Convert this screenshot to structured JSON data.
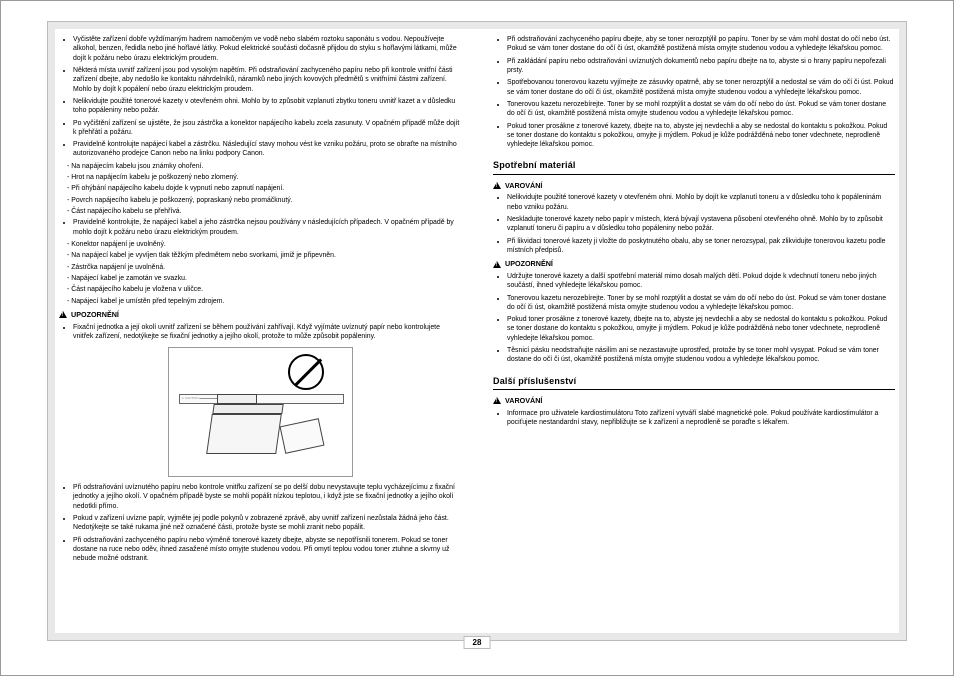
{
  "pageNumber": "28",
  "background_color": "#e8e8e8",
  "border_color": "#bbbbbb",
  "text_color": "#000000",
  "leftColumn": {
    "bullets1": [
      "Vyčistěte zařízení dobře vyždímaným hadrem namočeným ve vodě nebo slabém roztoku saponátu s vodou. Nepoužívejte alkohol, benzen, ředidla nebo jiné hořlavé látky. Pokud elektrické součásti dočasně přijdou do styku s hořlavými látkami, může dojít k požáru nebo úrazu elektrickým proudem.",
      "Některá místa uvnitř zařízení jsou pod vysokým napětím. Při odstraňování zachyceného papíru nebo při kontrole vnitřní části zařízení dbejte, aby nedošlo ke kontaktu náhrdelníků, náramků nebo jiných kovových předmětů s vnitřními částmi zařízení. Mohlo by dojít k popálení nebo úrazu elektrickým proudem.",
      "Nelikvidujte použité tonerové kazety v otevřeném ohni. Mohlo by to způsobit vzplanutí zbytku toneru uvnitř kazet a v důsledku toho popáleniny nebo požár.",
      "Po vyčištění zařízení se ujistěte, že jsou zástrčka a konektor napájecího kabelu zcela zasunuty. V opačném případě může dojít k přehřátí a požáru.",
      "Pravidelně kontrolujte napájecí kabel a zástrčku. Následující stavy mohou vést ke vzniku požáru, proto se obraťte na místního autorizovaného prodejce Canon nebo na linku podpory Canon."
    ],
    "sub1": [
      "Na napájecím kabelu jsou známky ohoření.",
      "Hrot na napájecím kabelu je poškozený nebo zlomený.",
      "Při ohýbání napájecího kabelu dojde k vypnutí nebo zapnutí napájení.",
      "Povrch napájecího kabelu je poškozený, popraskaný nebo promáčknutý.",
      "Část napájecího kabelu se přehřívá."
    ],
    "bullets1b": [
      "Pravidelně kontrolujte, že napájecí kabel a jeho zástrčka nejsou používány v následujících případech. V opačném případě by mohlo dojít k požáru nebo úrazu elektrickým proudem."
    ],
    "sub2": [
      "Konektor napájení je uvolněný.",
      "Na napájecí kabel je vyvíjen tlak těžkým předmětem nebo svorkami, jimiž je připevněn.",
      "Zástrčka napájení je uvolněná.",
      "Napájecí kabel je zamotán ve svazku.",
      "Část napájecího kabelu je vložena v uličce.",
      "Napájecí kabel je umístěn před tepelným zdrojem."
    ],
    "upozorneniHead": "UPOZORNĚNÍ",
    "upozorneniBullets": [
      "Fixační jednotka a její okolí uvnitř zařízení se během používání zahřívají. Když vyjímáte uvíznutý papír nebo kontrolujete vnitřek zařízení, nedotýkejte se fixační jednotky a jejího okolí, protože to může způsobit popáleniny."
    ],
    "bullets2": [
      "Při odstraňování uvíznutého papíru nebo kontrole vnitřku zařízení se po delší dobu nevystavujte teplu vycházejícímu z fixační jednotky a jejího okolí. V opačném případě byste se mohli popálit nízkou teplotou, i když jste se fixační jednotky a jejího okolí nedotkli přímo.",
      "Pokud v zařízení uvízne papír, vyjměte jej podle pokynů v zobrazené zprávě, aby uvnitř zařízení nezůstala žádná jeho část. Nedotýkejte se také rukama jiné než označené části, protože byste se mohli zranit nebo popálit.",
      "Při odstraňování zachyceného papíru nebo výměně tonerové kazety dbejte, abyste se nepotřísnili tonerem. Pokud se toner dostane na ruce nebo oděv, ihned zasažené místo omyjte studenou vodou. Při omytí teplou vodou toner ztuhne a skvrny už nebude možné odstranit."
    ],
    "figure_label": "⚠ CAUTION ▬▬▬▬▬▬▬▬▬▬▬▬▬▬▬▬▬"
  },
  "rightColumn": {
    "bullets1": [
      "Při odstraňování zachyceného papíru dbejte, aby se toner nerozptýlil po papíru. Toner by se vám mohl dostat do očí nebo úst. Pokud se vám toner dostane do očí či úst, okamžitě postižená místa omyjte studenou vodou a vyhledejte lékařskou pomoc.",
      "Při zakládání papíru nebo odstraňování uvíznutých dokumentů nebo papíru dbejte na to, abyste si o hrany papíru nepořezali prsty.",
      "Spotřebovanou tonerovou kazetu vyjímejte ze zásuvky opatrně, aby se toner nerozptýlil a nedostal se vám do očí či úst. Pokud se vám toner dostane do očí či úst, okamžitě postižená místa omyjte studenou vodou a vyhledejte lékařskou pomoc.",
      "Tonerovou kazetu nerozebírejte. Toner by se mohl rozptýlit a dostat se vám do očí nebo do úst. Pokud se vám toner dostane do očí či úst, okamžitě postižená místa omyjte studenou vodou a vyhledejte lékařskou pomoc.",
      "Pokud toner prosákne z tonerové kazety, dbejte na to, abyste jej nevdechli a aby se nedostal do kontaktu s pokožkou. Pokud se toner dostane do kontaktu s pokožkou, omyjte ji mýdlem. Pokud je kůže podrážděná nebo toner vdechnete, neprodleně vyhledejte lékařskou pomoc."
    ],
    "section1": "Spotřební materiál",
    "varovaniHead1": "VAROVÁNÍ",
    "varovaniBullets1": [
      "Nelikvidujte použité tonerové kazety v otevřeném ohni. Mohlo by dojít ke vzplanutí toneru a v důsledku toho k popáleninám nebo vzniku požáru.",
      "Neskladujte tonerové kazety nebo papír v místech, která bývají vystavena působení otevřeného ohně. Mohlo by to způsobit vzplanutí toneru či papíru a v důsledku toho popáleniny nebo požár.",
      "Při likvidaci tonerové kazety ji vložte do poskytnutého obalu, aby se toner nerozsypal, pak zlikvidujte tonerovou kazetu podle místních předpisů."
    ],
    "upozorneniHead2": "UPOZORNĚNÍ",
    "upozorneniBullets2": [
      "Udržujte tonerové kazety a další spotřební materiál mimo dosah malých dětí. Pokud dojde k vdechnutí toneru nebo jiných součástí, ihned vyhledejte lékařskou pomoc.",
      "Tonerovou kazetu nerozebírejte. Toner by se mohl rozptýlit a dostat se vám do očí nebo do úst. Pokud se vám toner dostane do očí či úst, okamžitě postižená místa omyjte studenou vodou a vyhledejte lékařskou pomoc.",
      "Pokud toner prosákne z tonerové kazety, dbejte na to, abyste jej nevdechli a aby se nedostal do kontaktu s pokožkou. Pokud se toner dostane do kontaktu s pokožkou, omyjte ji mýdlem. Pokud je kůže podrážděná nebo toner vdechnete, neprodleně vyhledejte lékařskou pomoc.",
      "Těsnicí pásku neodstraňujte násilím ani se nezastavujte uprostřed, protože by se toner mohl vysypat. Pokud se vám toner dostane do očí či úst, okamžitě postižená místa omyjte studenou vodou a vyhledejte lékařskou pomoc."
    ],
    "section2": "Další příslušenství",
    "varovaniHead2": "VAROVÁNÍ",
    "varovaniBullets2": [
      "Informace pro uživatele kardiostimulátoru\nToto zařízení vytváří slabé magnetické pole. Pokud používáte kardiostimulátor a pociťujete nestandardní stavy, nepřibližujte se k zařízení a neprodleně se poraďte s lékařem."
    ]
  }
}
